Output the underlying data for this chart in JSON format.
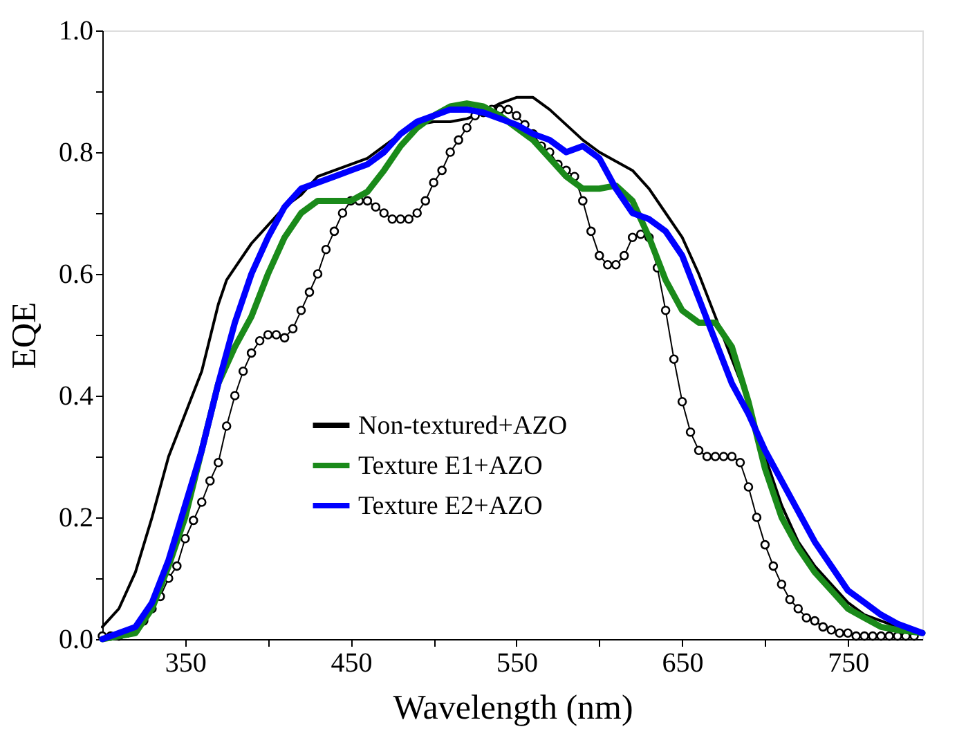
{
  "chart_data": {
    "type": "line",
    "xlabel": "Wavelength (nm)",
    "ylabel": "EQE",
    "xlim": [
      300,
      795
    ],
    "ylim": [
      0,
      1
    ],
    "xticks": [
      350,
      {
        "value": 400,
        "label": null
      },
      450,
      {
        "value": 500,
        "label": null
      },
      550,
      {
        "value": 600,
        "label": null
      },
      650,
      {
        "value": 700,
        "label": null
      },
      750
    ],
    "yticks": [
      {
        "value": 0,
        "label": "0.0"
      },
      {
        "value": 0.1,
        "label": null
      },
      0.2,
      {
        "value": 0.3,
        "label": null
      },
      0.4,
      {
        "value": 0.5,
        "label": null
      },
      0.6,
      {
        "value": 0.7,
        "label": null
      },
      0.8,
      {
        "value": 0.9,
        "label": null
      },
      {
        "value": 1,
        "label": "1.0"
      }
    ],
    "grid": false,
    "legend": "bottom",
    "line_style": "solid",
    "series": [
      {
        "color": "#000000",
        "marker": "none",
        "x": [
          300,
          310,
          320,
          330,
          340,
          350,
          360,
          370,
          375,
          380,
          390,
          400,
          410,
          420,
          430,
          440,
          450,
          460,
          470,
          480,
          490,
          500,
          510,
          520,
          530,
          540,
          550,
          560,
          570,
          580,
          590,
          600,
          610,
          620,
          630,
          640,
          650,
          660,
          670,
          680,
          690,
          700,
          710,
          720,
          730,
          740,
          750,
          760,
          770,
          780,
          795
        ],
        "values": [
          0.02,
          0.05,
          0.11,
          0.2,
          0.3,
          0.37,
          0.44,
          0.55,
          0.59,
          0.61,
          0.65,
          0.68,
          0.71,
          0.73,
          0.76,
          0.77,
          0.78,
          0.79,
          0.81,
          0.83,
          0.845,
          0.85,
          0.85,
          0.855,
          0.865,
          0.88,
          0.89,
          0.89,
          0.87,
          0.845,
          0.82,
          0.8,
          0.785,
          0.77,
          0.74,
          0.7,
          0.66,
          0.6,
          0.53,
          0.46,
          0.39,
          0.3,
          0.22,
          0.16,
          0.12,
          0.09,
          0.06,
          0.04,
          0.03,
          0.02,
          0.01
        ]
      },
      {
        "name": "Non-textured+AZO",
        "color": "#000000",
        "marker": "circle",
        "x": [
          300,
          305,
          310,
          315,
          320,
          325,
          330,
          335,
          340,
          345,
          350,
          355,
          360,
          365,
          370,
          375,
          380,
          385,
          390,
          395,
          400,
          405,
          410,
          415,
          420,
          425,
          430,
          435,
          440,
          445,
          450,
          455,
          460,
          465,
          470,
          475,
          480,
          485,
          490,
          495,
          500,
          505,
          510,
          515,
          520,
          525,
          530,
          535,
          540,
          545,
          550,
          555,
          560,
          565,
          570,
          575,
          580,
          585,
          590,
          595,
          600,
          605,
          610,
          615,
          620,
          625,
          630,
          635,
          640,
          645,
          650,
          655,
          660,
          665,
          670,
          675,
          680,
          685,
          690,
          695,
          700,
          705,
          710,
          715,
          720,
          725,
          730,
          735,
          740,
          745,
          750,
          755,
          760,
          765,
          770,
          775,
          780,
          785,
          790
        ],
        "values": [
          0.005,
          0.005,
          0.005,
          0.01,
          0.015,
          0.03,
          0.05,
          0.07,
          0.1,
          0.12,
          0.165,
          0.195,
          0.225,
          0.26,
          0.29,
          0.35,
          0.4,
          0.44,
          0.47,
          0.49,
          0.5,
          0.5,
          0.495,
          0.51,
          0.54,
          0.57,
          0.6,
          0.64,
          0.67,
          0.7,
          0.72,
          0.72,
          0.72,
          0.71,
          0.7,
          0.69,
          0.69,
          0.69,
          0.7,
          0.72,
          0.75,
          0.77,
          0.8,
          0.82,
          0.84,
          0.86,
          0.865,
          0.87,
          0.87,
          0.87,
          0.86,
          0.845,
          0.83,
          0.81,
          0.8,
          0.78,
          0.77,
          0.76,
          0.72,
          0.67,
          0.63,
          0.615,
          0.615,
          0.63,
          0.66,
          0.665,
          0.66,
          0.61,
          0.54,
          0.46,
          0.39,
          0.34,
          0.31,
          0.3,
          0.3,
          0.3,
          0.3,
          0.29,
          0.25,
          0.2,
          0.155,
          0.12,
          0.09,
          0.065,
          0.05,
          0.035,
          0.03,
          0.02,
          0.015,
          0.01,
          0.01,
          0.005,
          0.005,
          0.005,
          0.005,
          0.005,
          0.005,
          0.005,
          0.005
        ]
      },
      {
        "name": "Texture E1+AZO",
        "color": "#1a8a1a",
        "marker": "none",
        "x": [
          300,
          320,
          330,
          340,
          350,
          360,
          370,
          380,
          390,
          400,
          410,
          420,
          430,
          440,
          450,
          460,
          470,
          480,
          490,
          500,
          510,
          520,
          530,
          540,
          550,
          560,
          570,
          580,
          590,
          600,
          610,
          620,
          630,
          640,
          650,
          660,
          670,
          680,
          690,
          700,
          710,
          720,
          730,
          740,
          750,
          760,
          770,
          780,
          795
        ],
        "values": [
          0,
          0.01,
          0.05,
          0.12,
          0.2,
          0.31,
          0.42,
          0.48,
          0.53,
          0.6,
          0.66,
          0.7,
          0.72,
          0.72,
          0.72,
          0.735,
          0.77,
          0.81,
          0.84,
          0.86,
          0.875,
          0.88,
          0.875,
          0.86,
          0.84,
          0.82,
          0.79,
          0.76,
          0.74,
          0.74,
          0.745,
          0.72,
          0.66,
          0.59,
          0.54,
          0.52,
          0.52,
          0.48,
          0.39,
          0.28,
          0.2,
          0.15,
          0.11,
          0.08,
          0.05,
          0.035,
          0.02,
          0.015,
          0.01
        ]
      },
      {
        "name": "Texture E2+AZO",
        "color": "#0000ff",
        "marker": "none",
        "x": [
          300,
          320,
          330,
          340,
          350,
          360,
          370,
          380,
          390,
          400,
          410,
          420,
          430,
          440,
          450,
          460,
          470,
          480,
          490,
          500,
          510,
          520,
          530,
          540,
          550,
          560,
          570,
          580,
          590,
          600,
          610,
          620,
          630,
          640,
          650,
          660,
          670,
          680,
          690,
          700,
          710,
          720,
          730,
          740,
          750,
          760,
          770,
          780,
          795
        ],
        "values": [
          0,
          0.02,
          0.06,
          0.13,
          0.22,
          0.31,
          0.42,
          0.52,
          0.6,
          0.66,
          0.71,
          0.74,
          0.75,
          0.76,
          0.77,
          0.78,
          0.8,
          0.83,
          0.85,
          0.86,
          0.87,
          0.87,
          0.865,
          0.855,
          0.845,
          0.83,
          0.82,
          0.8,
          0.81,
          0.79,
          0.74,
          0.7,
          0.69,
          0.67,
          0.63,
          0.56,
          0.49,
          0.42,
          0.37,
          0.31,
          0.26,
          0.21,
          0.16,
          0.12,
          0.08,
          0.06,
          0.04,
          0.025,
          0.01
        ]
      }
    ]
  }
}
